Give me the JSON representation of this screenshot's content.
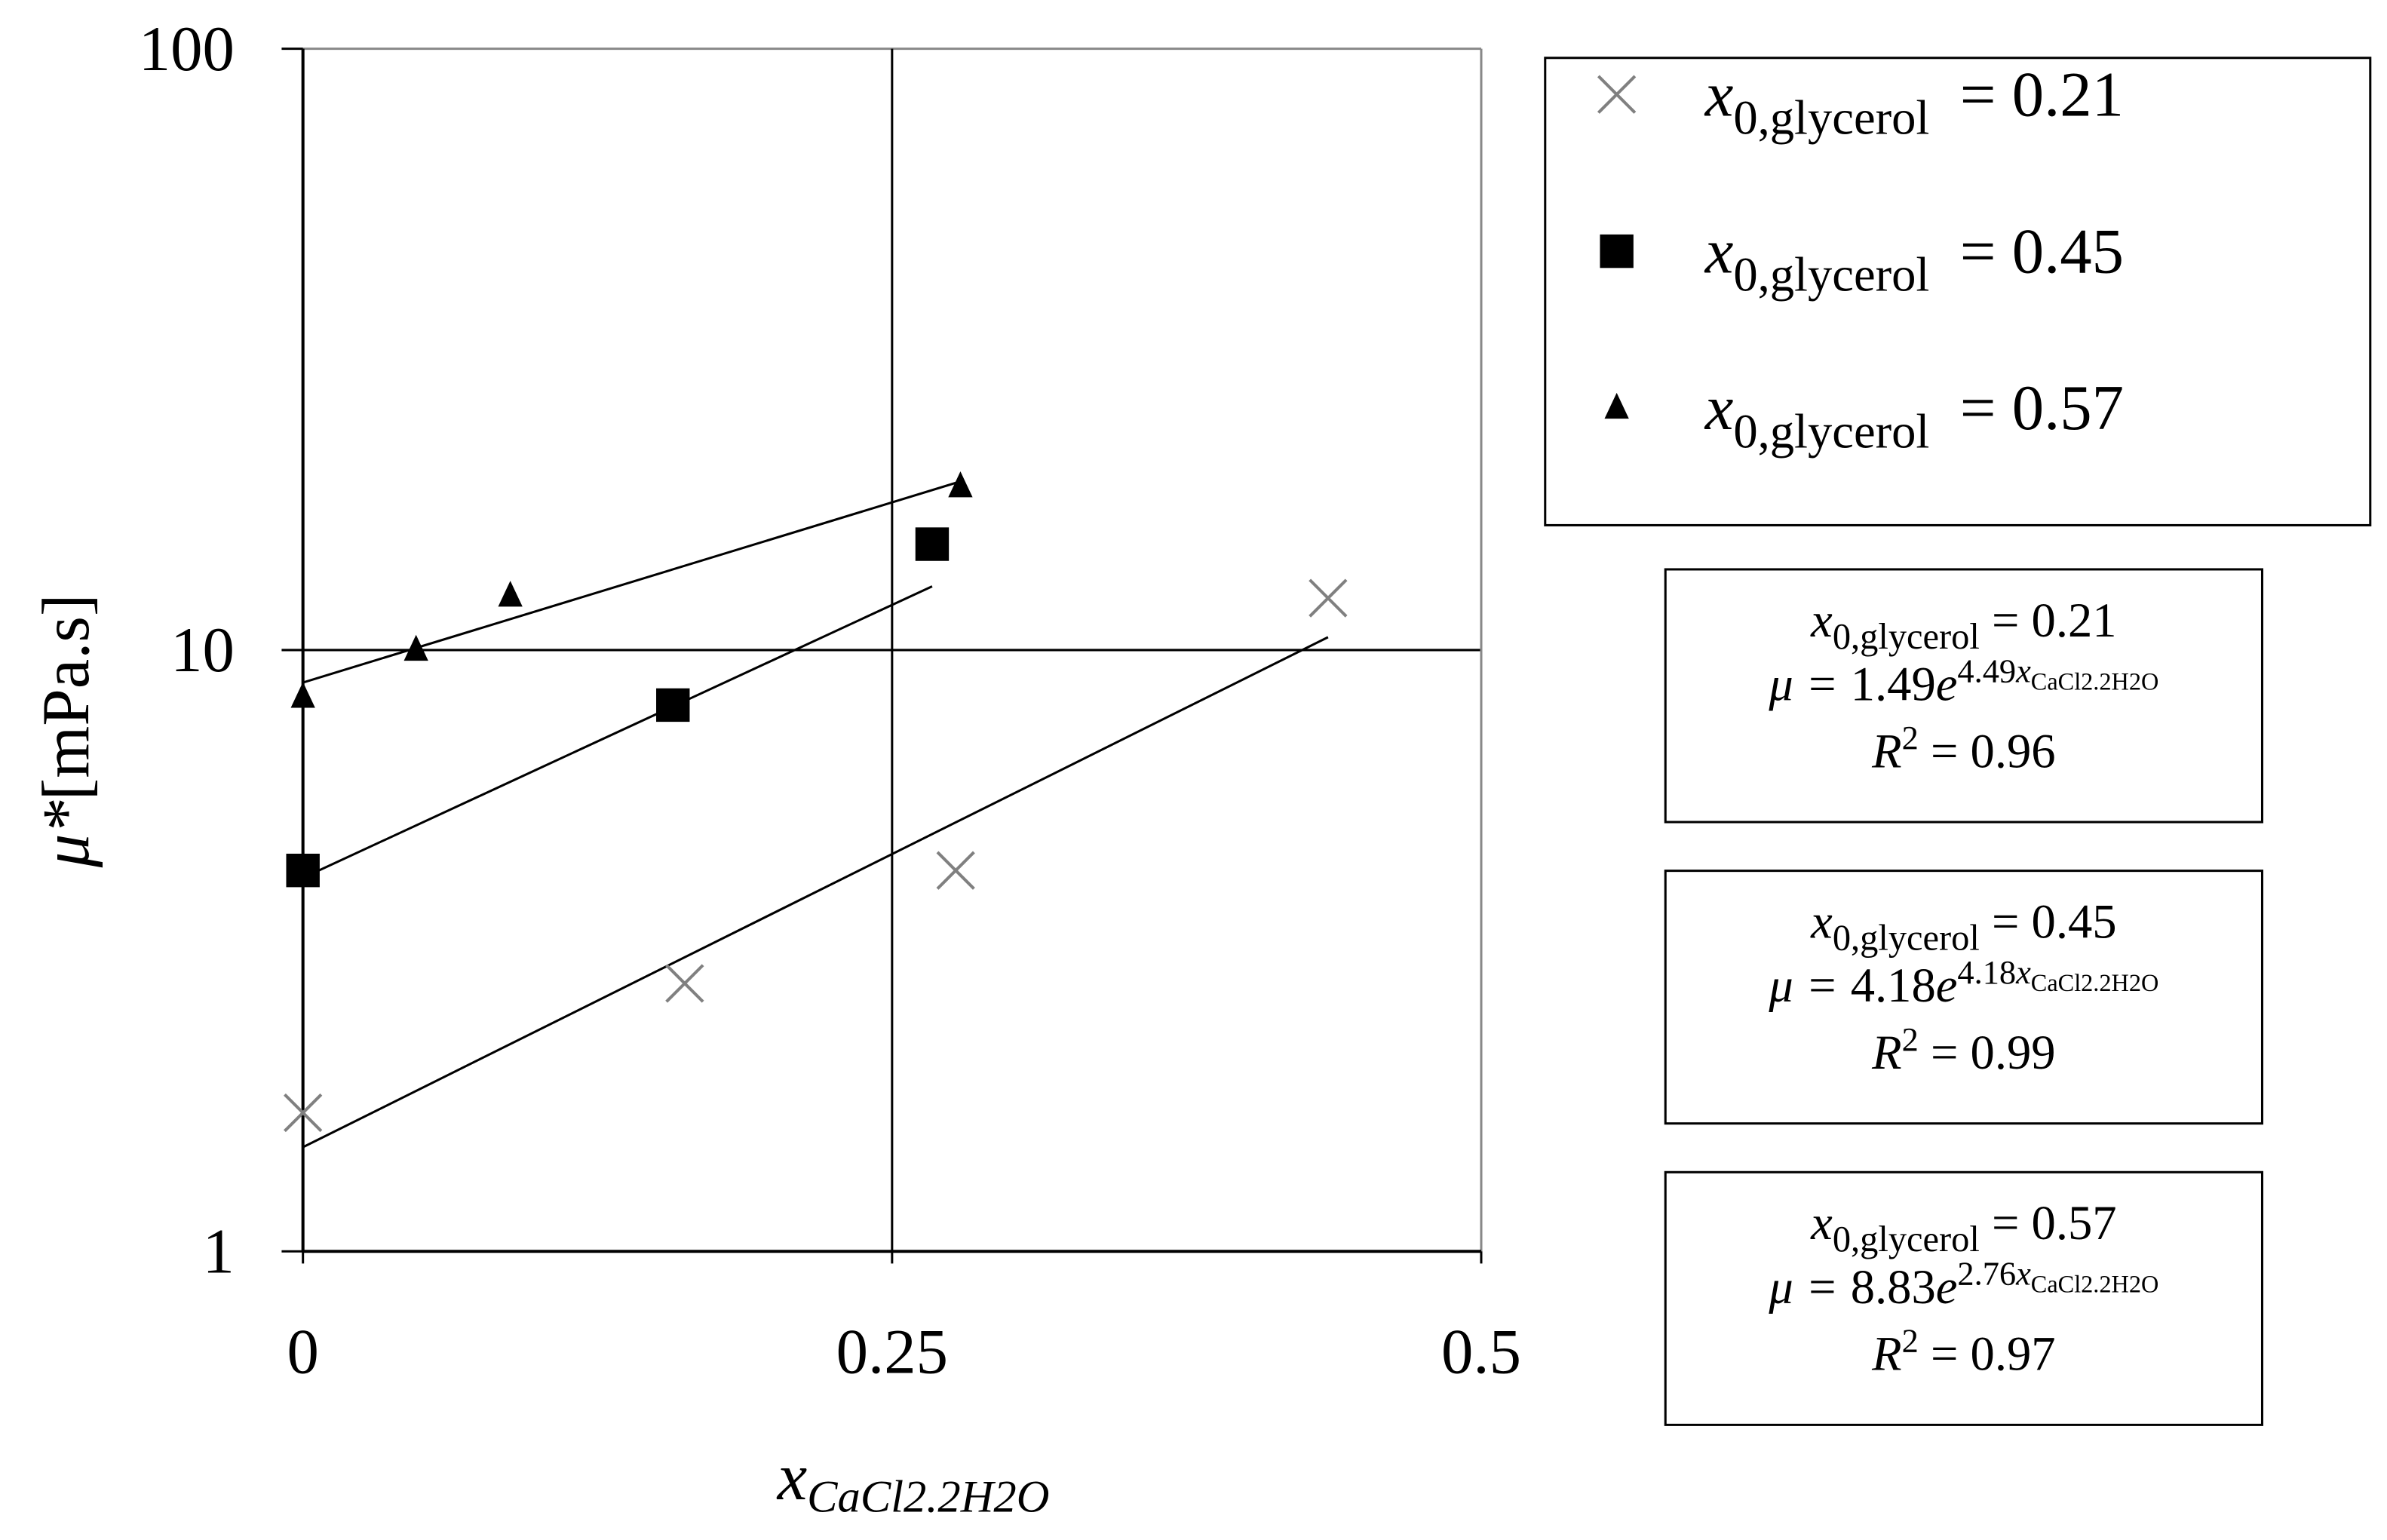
{
  "chart_data": {
    "type": "scatter",
    "xlabel": {
      "var": "x",
      "sub": "CaCl2.2H2O"
    },
    "ylabel": {
      "sym": "μ*",
      "unit": "[mPa.s]"
    },
    "xlim": [
      0,
      0.5
    ],
    "xticks": [
      0,
      0.25,
      0.5
    ],
    "ylim": [
      1,
      100
    ],
    "yticks": [
      1,
      10,
      100
    ],
    "ylog": true,
    "grid": true,
    "series": [
      {
        "label": {
          "var": "x",
          "sub": "0,glycerol",
          "eq": "= 0.21"
        },
        "marker": "cross",
        "color": "#808080",
        "x": [
          0,
          0.162,
          0.277,
          0.435
        ],
        "values": [
          1.7,
          2.79,
          4.3,
          12.2
        ]
      },
      {
        "label": {
          "var": "x",
          "sub": "0,glycerol",
          "eq": "= 0.45"
        },
        "marker": "square",
        "color": "#000000",
        "x": [
          0,
          0.157,
          0.267
        ],
        "values": [
          4.3,
          8.1,
          15.0
        ]
      },
      {
        "label": {
          "var": "x",
          "sub": "0,glycerol",
          "eq": "= 0.57"
        },
        "marker": "triangle",
        "color": "#000000",
        "x": [
          0,
          0.048,
          0.088,
          0.279
        ],
        "values": [
          8.35,
          10,
          12.3,
          18.7
        ]
      }
    ],
    "fits": [
      {
        "glycerol": {
          "var": "x",
          "sub": "0,glycerol",
          "eq": "= 0.21"
        },
        "mu": "μ =",
        "a": 1.49,
        "base": "e",
        "b": 4.49,
        "var": "x",
        "sub": "CaCl2.2H2O",
        "r": "R",
        "r_sup": "2",
        "r_eq": "=",
        "r2": 0.96
      },
      {
        "glycerol": {
          "var": "x",
          "sub": "0,glycerol",
          "eq": "= 0.45"
        },
        "mu": "μ =",
        "a": 4.18,
        "base": "e",
        "b": 4.18,
        "var": "x",
        "sub": "CaCl2.2H2O",
        "r": "R",
        "r_sup": "2",
        "r_eq": "=",
        "r2": 0.99
      },
      {
        "glycerol": {
          "var": "x",
          "sub": "0,glycerol",
          "eq": "= 0.57"
        },
        "mu": "μ =",
        "a": 8.83,
        "base": "e",
        "b": 2.76,
        "var": "x",
        "sub": "CaCl2.2H2O",
        "r": "R",
        "r_sup": "2",
        "r_eq": "=",
        "r2": 0.97
      }
    ]
  }
}
